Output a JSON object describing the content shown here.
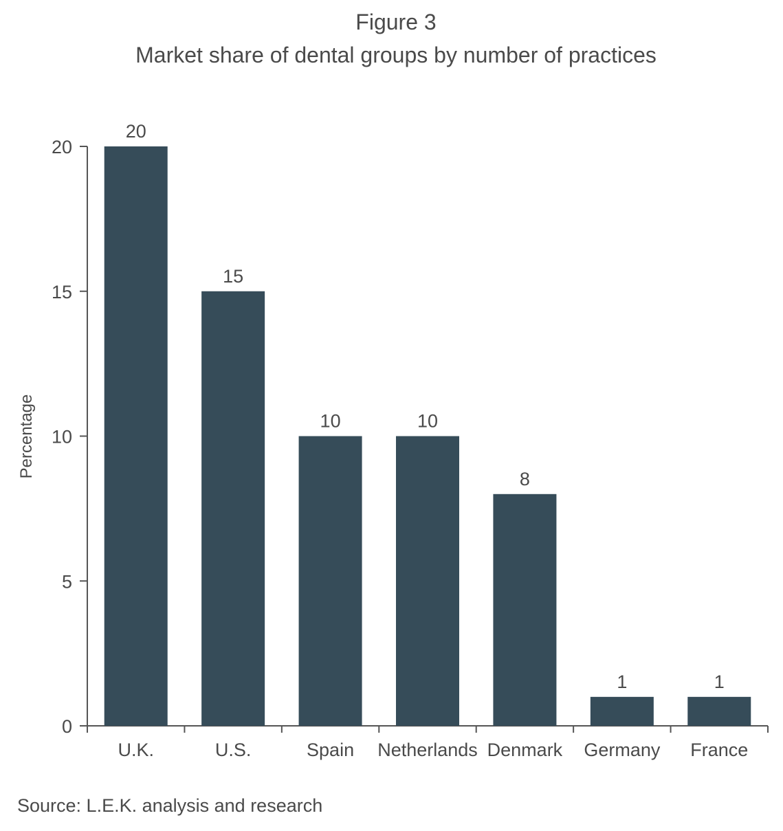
{
  "figure": {
    "label": "Figure 3",
    "title": "Market share of dental groups by number of practices",
    "source": "Source: L.E.K. analysis and research"
  },
  "chart_data": {
    "type": "bar",
    "title": "Market share of dental groups by number of practices",
    "xlabel": "",
    "ylabel": "Percentage",
    "categories": [
      "U.K.",
      "U.S.",
      "Spain",
      "Netherlands",
      "Denmark",
      "Germany",
      "France"
    ],
    "values": [
      20,
      15,
      10,
      10,
      8,
      1,
      1
    ],
    "data_labels": [
      "20",
      "15",
      "10",
      "10",
      "8",
      "1",
      "1"
    ],
    "ylim": [
      0,
      20
    ],
    "yticks": [
      0,
      5,
      10,
      15,
      20
    ],
    "grid": false,
    "legend": "none",
    "bar_color": "#364c59"
  }
}
